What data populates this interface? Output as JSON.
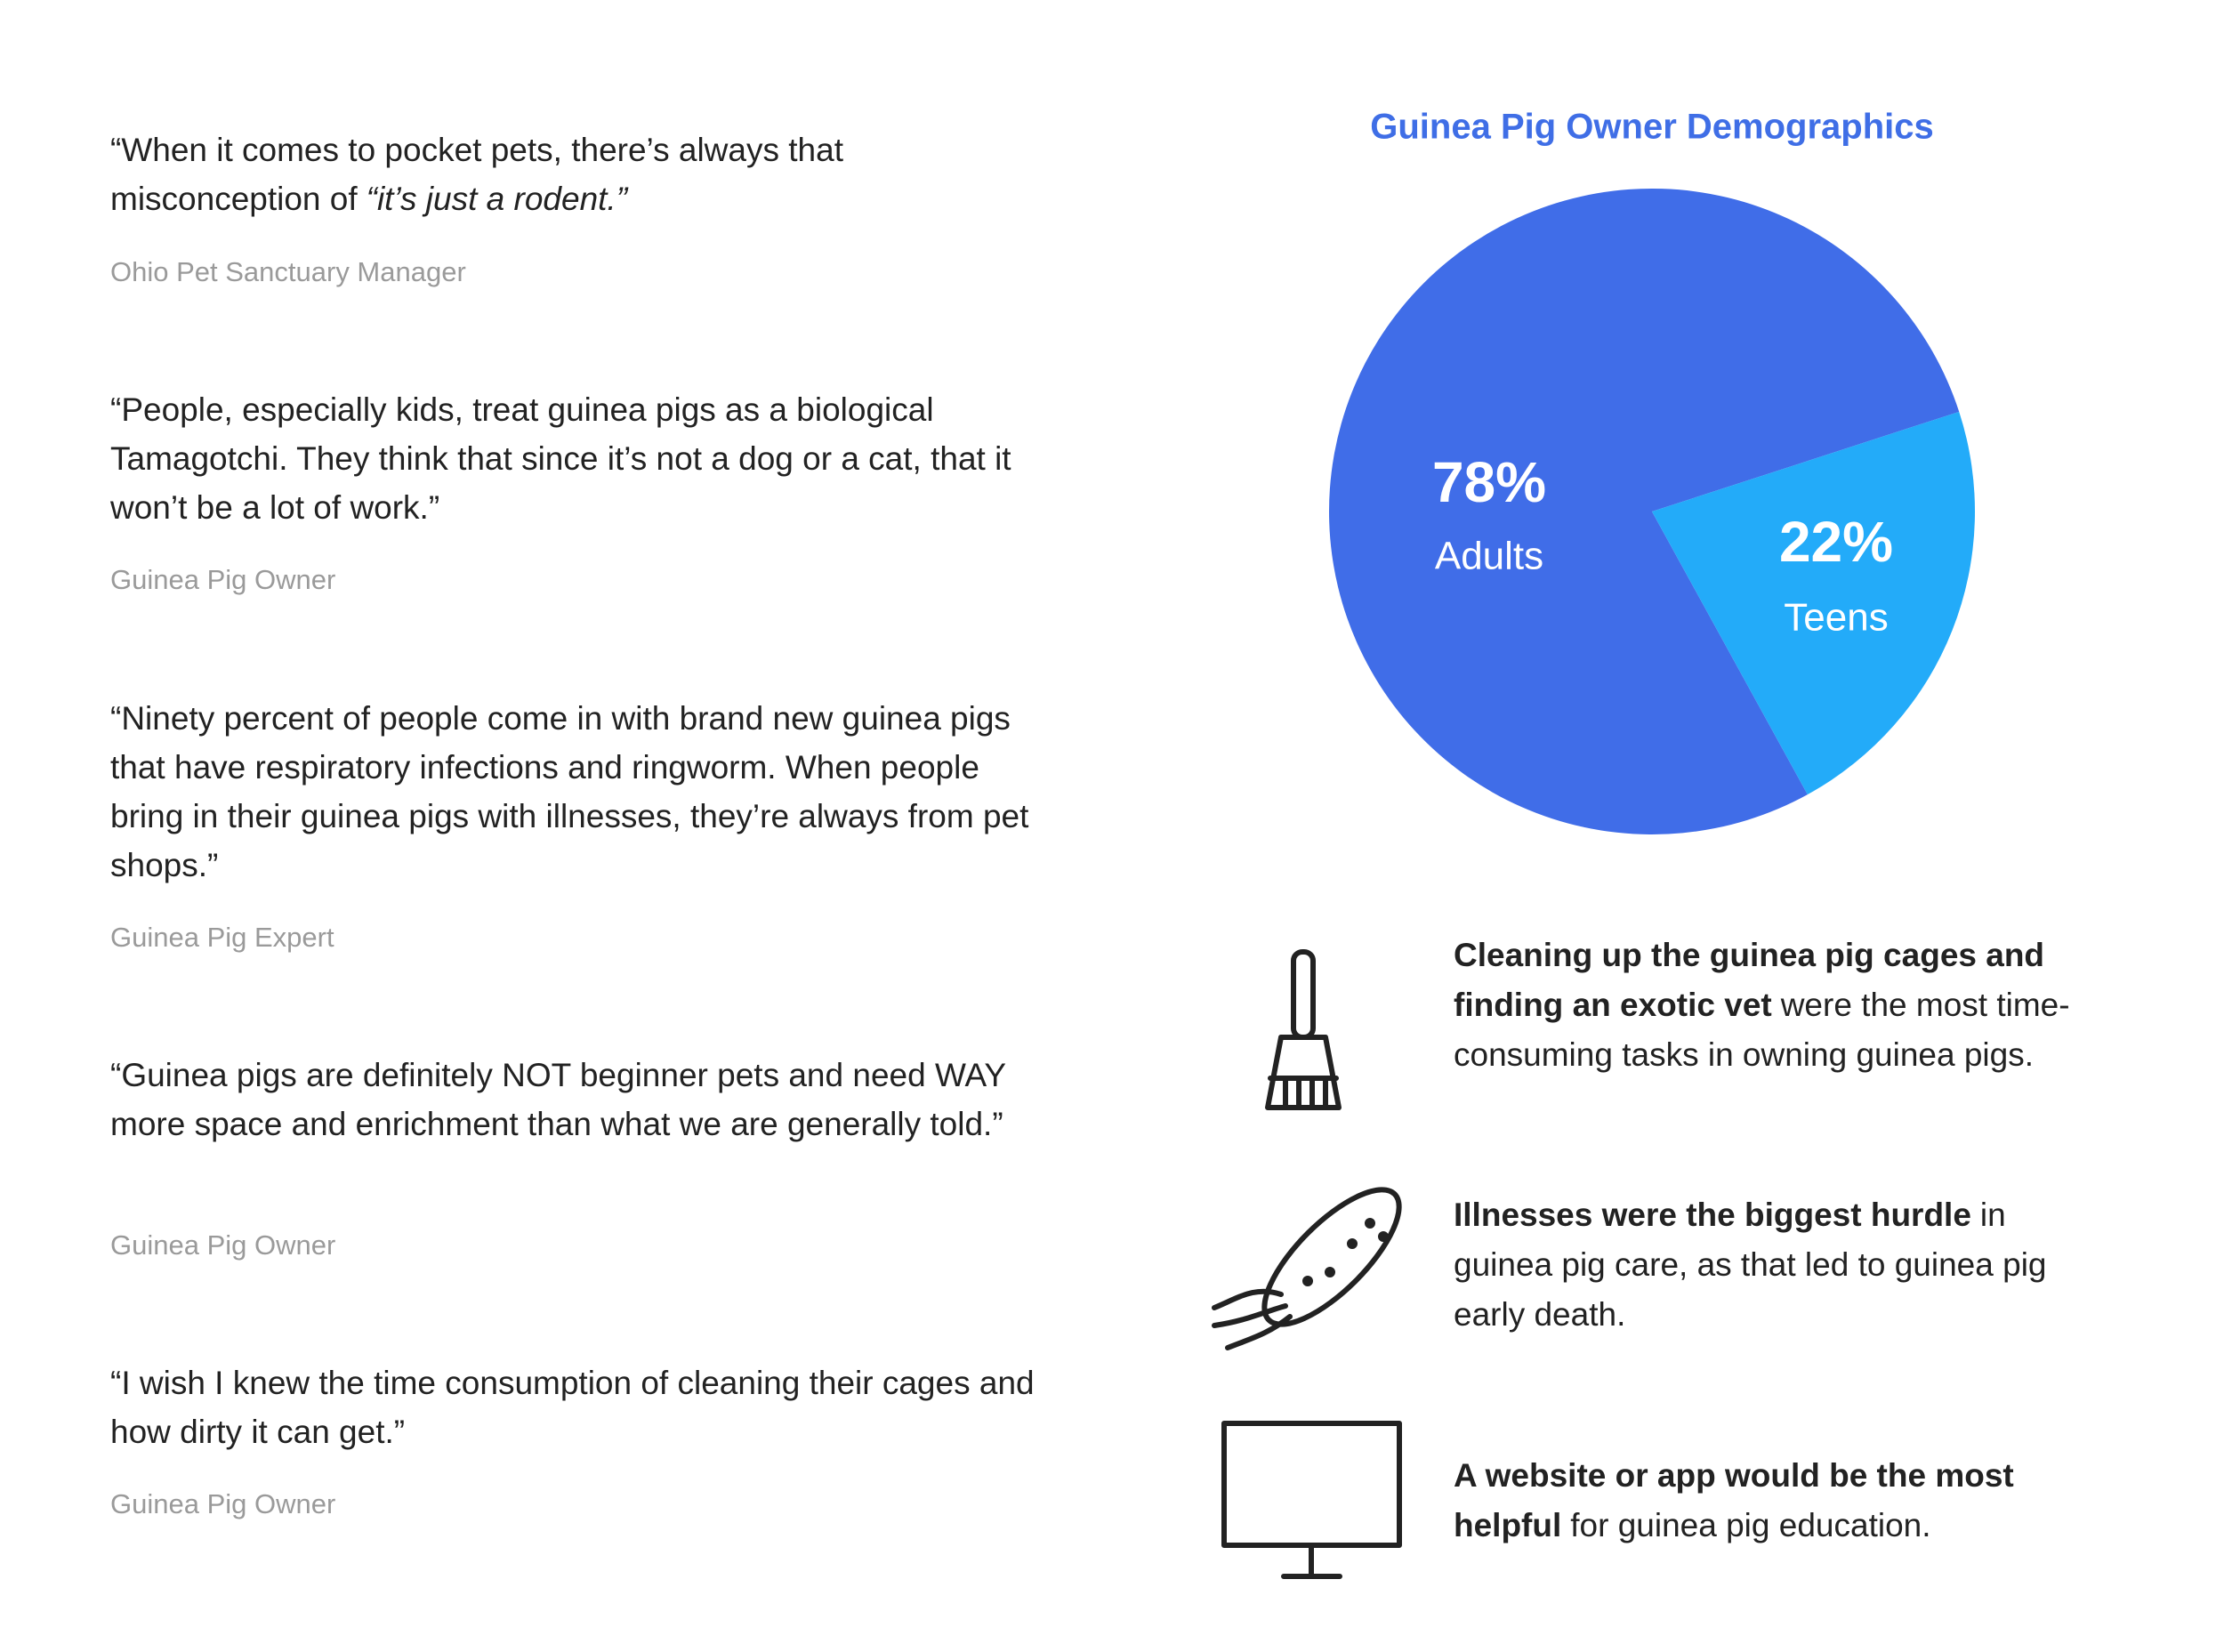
{
  "chart_data": {
    "type": "pie",
    "title": "Guinea Pig Owner Demographics",
    "categories": [
      "Adults",
      "Teens"
    ],
    "values": [
      78,
      22
    ],
    "value_labels": [
      "78%",
      "22%"
    ],
    "colors": [
      "#406de8",
      "#23abf9"
    ]
  },
  "quotes": [
    {
      "text": "“When it comes to pocket pets, there’s always that misconception of",
      "emphasis": "“it’s just a rodent.”",
      "source": "Ohio Pet Sanctuary Manager"
    },
    {
      "text": "“People, especially kids, treat guinea pigs as a biological Tamagotchi. They think that since it’s not a dog or a cat, that it won’t be a lot of work.”",
      "source": "Guinea Pig Owner"
    },
    {
      "text": "“Ninety percent of people come in with brand new guinea pigs that have respiratory infections and ringworm. When people bring in their guinea pigs with illnesses, they’re always from pet shops.”",
      "source": "Guinea Pig Expert"
    },
    {
      "text": "“Guinea pigs are definitely NOT beginner pets and need WAY more space and enrichment than what we are generally told.”",
      "source": "Guinea Pig Owner"
    },
    {
      "text": "“I wish I knew the time consumption of cleaning their cages and how dirty it can get.”",
      "source": "Guinea Pig Owner"
    }
  ],
  "findings": [
    {
      "bold": "Cleaning up the guinea pig cages and finding an exotic vet",
      "text": "were the most time-consuming tasks in owning guinea pigs."
    },
    {
      "bold": "Illnesses were the biggest hurdle",
      "text": "in guinea pig care, as that led to guinea pig early death."
    },
    {
      "bold": "A website or app would be the most helpful",
      "text": "for guinea pig education."
    }
  ]
}
